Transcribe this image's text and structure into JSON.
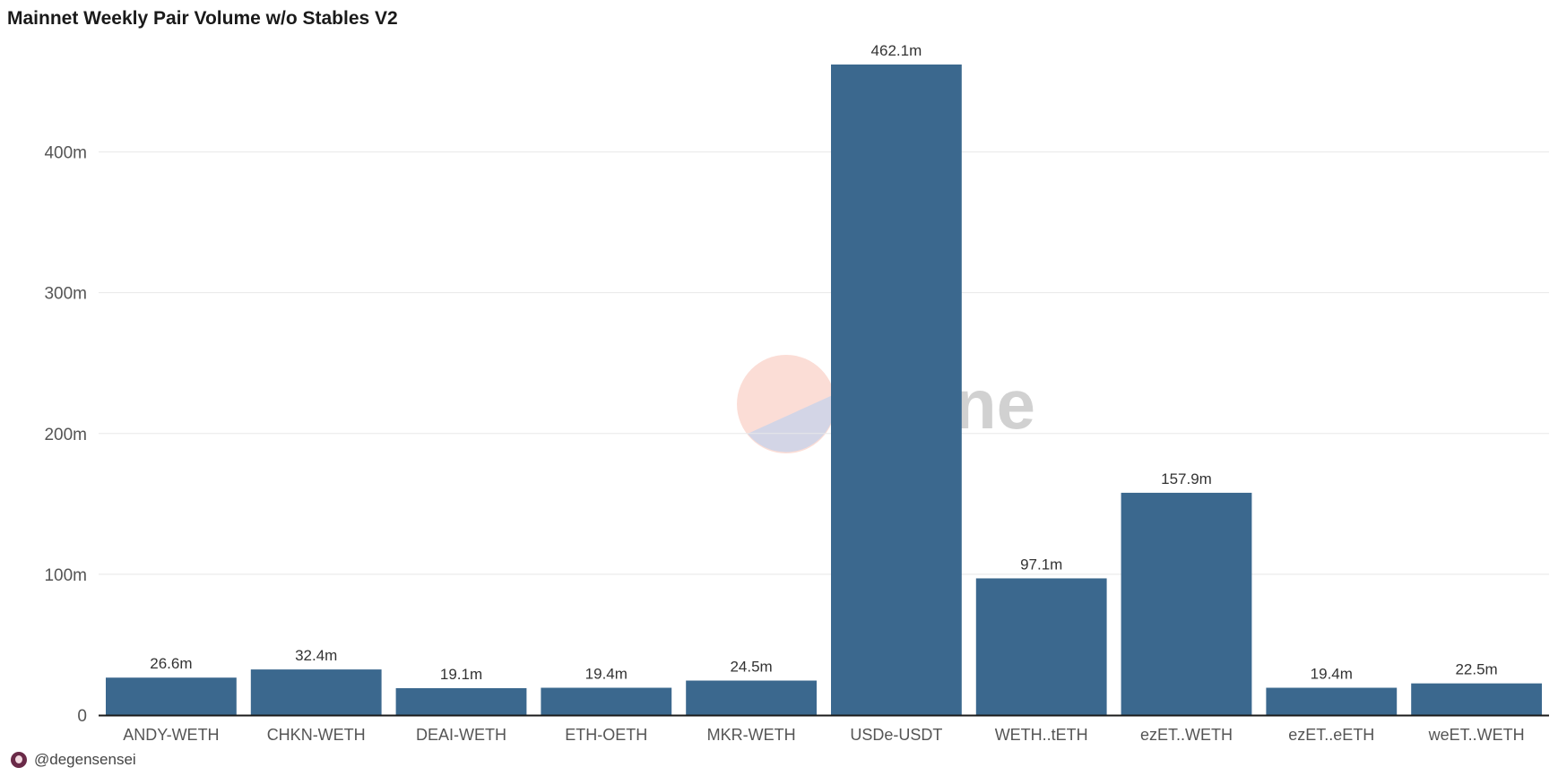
{
  "title": "Mainnet Weekly Pair Volume w/o Stables V2",
  "author": "@degensensei",
  "watermark": "Dune",
  "colors": {
    "bar": "#3b688e",
    "grid": "#e8e8e8",
    "axis": "#1a1a1a"
  },
  "chart_data": {
    "type": "bar",
    "categories": [
      "ANDY-WETH",
      "CHKN-WETH",
      "DEAI-WETH",
      "ETH-OETH",
      "MKR-WETH",
      "USDe-USDT",
      "WETH..tETH",
      "ezET..WETH",
      "ezET..eETH",
      "weET..WETH"
    ],
    "values": [
      26.6,
      32.4,
      19.1,
      19.4,
      24.5,
      462.1,
      97.1,
      157.9,
      19.4,
      22.5
    ],
    "data_labels": [
      "26.6m",
      "32.4m",
      "19.1m",
      "19.4m",
      "24.5m",
      "462.1m",
      "97.1m",
      "157.9m",
      "19.4m",
      "22.5m"
    ],
    "yticks": [
      0,
      100,
      200,
      300,
      400
    ],
    "ytick_labels": [
      "0",
      "100m",
      "200m",
      "300m",
      "400m"
    ],
    "ylim": [
      0,
      462.1
    ],
    "grid": true,
    "xlabel": "",
    "ylabel": ""
  }
}
